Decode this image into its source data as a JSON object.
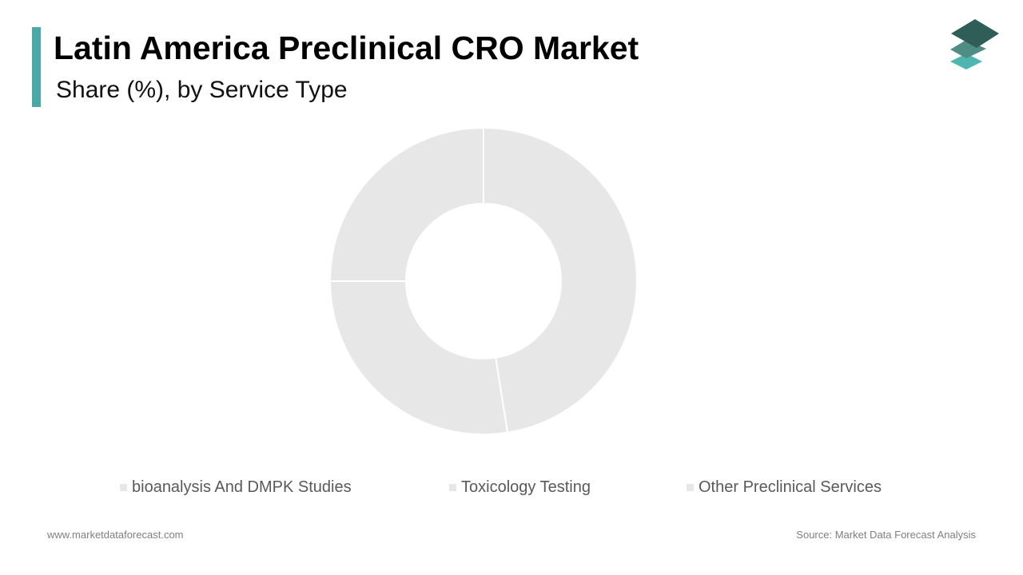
{
  "header": {
    "title": "Latin America Preclinical CRO Market",
    "subtitle": "Share (%), by Service Type"
  },
  "footer": {
    "website": "www.marketdataforecast.com",
    "source": "Source: Market Data Forecast Analysis"
  },
  "colors": {
    "accent": "#4aa8a8",
    "slice_fill": "#e7e7e7",
    "slice_stroke": "#ffffff",
    "logo_dark": "#2f5e58",
    "logo_mid": "#4f8c84",
    "logo_light": "#4fb5b0"
  },
  "logo": {
    "icon": "stacked-layers-icon"
  },
  "chart_data": {
    "type": "pie",
    "variant": "donut",
    "title": "Latin America Preclinical CRO Market",
    "subtitle": "Share (%), by Service Type",
    "categories": [
      "bioanalysis And DMPK Studies",
      "Toxicology Testing",
      "Other Preclinical Services"
    ],
    "values": [
      47.5,
      27.5,
      25.0
    ],
    "legend_position": "bottom",
    "data_labels": false
  }
}
